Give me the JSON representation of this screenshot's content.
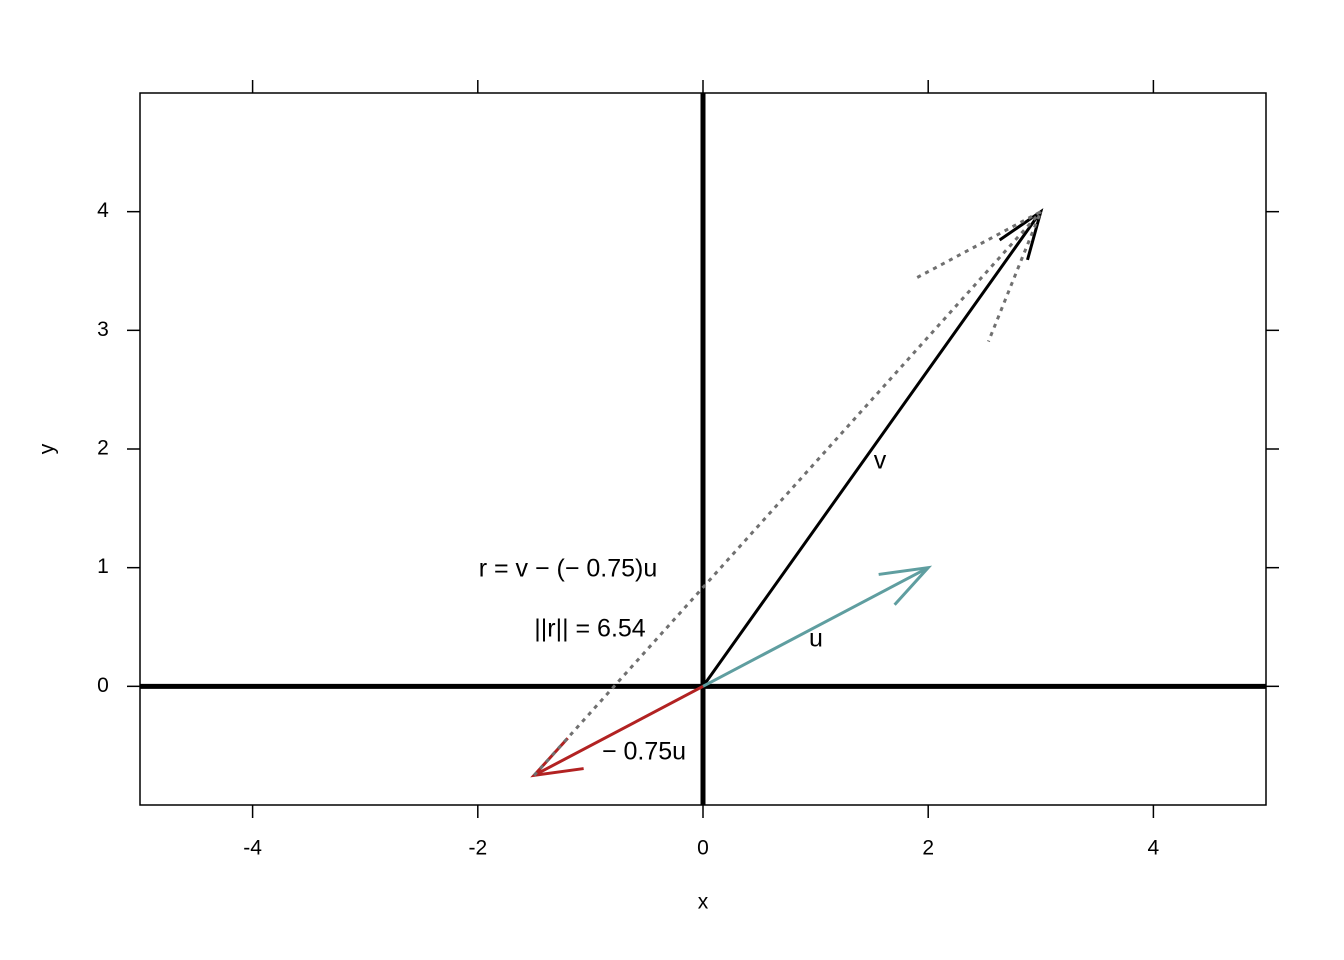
{
  "chart_data": {
    "type": "vector",
    "xlabel": "x",
    "ylabel": "y",
    "xlim": [
      -5,
      5
    ],
    "ylim": [
      -1,
      5
    ],
    "xticks": [
      -4,
      -2,
      0,
      2,
      4
    ],
    "yticks": [
      0,
      1,
      2,
      3,
      4
    ],
    "hline": 0,
    "vline": 0,
    "series": [
      {
        "name": "v",
        "color": "#000000",
        "dashed": false,
        "x": [
          0,
          3
        ],
        "y": [
          0,
          4
        ]
      },
      {
        "name": "u",
        "color": "#5F9EA0",
        "dashed": false,
        "x": [
          0,
          2
        ],
        "y": [
          0,
          1
        ]
      },
      {
        "name": "− 0.75u",
        "color": "#B22222",
        "dashed": false,
        "x": [
          0,
          -1.5
        ],
        "y": [
          0,
          -0.75
        ]
      },
      {
        "name": null,
        "color": "#707070",
        "dashed": true,
        "x": [
          -1.5,
          3
        ],
        "y": [
          -0.75,
          4
        ]
      }
    ],
    "annotations": [
      "r = v − (− 0.75)u",
      "||r|| = 6.54"
    ]
  }
}
